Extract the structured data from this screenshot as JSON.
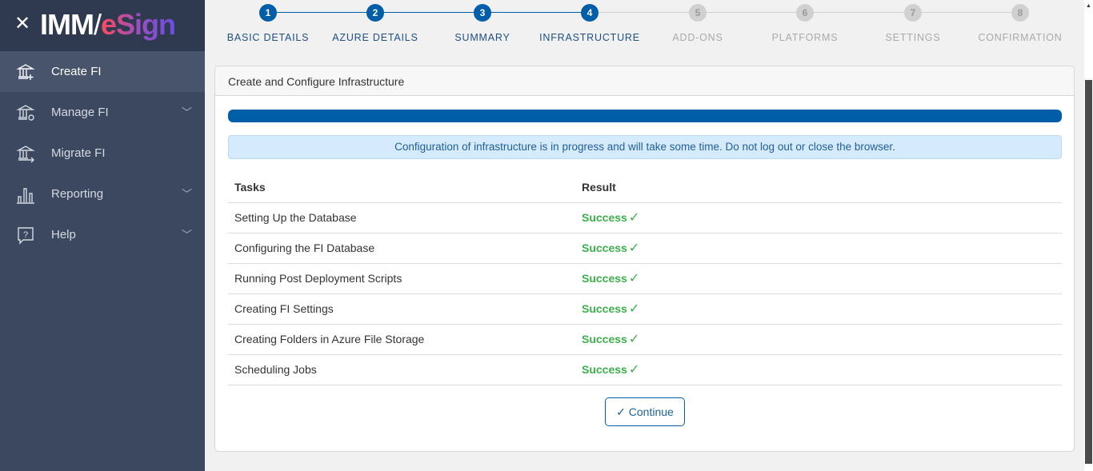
{
  "app": {
    "logo_text": "IMM/eSign",
    "close_icon": "close-icon"
  },
  "sidebar": {
    "items": [
      {
        "label": "Create FI",
        "icon": "bank-plus-icon",
        "active": true
      },
      {
        "label": "Manage FI",
        "icon": "bank-gear-icon",
        "expandable": true
      },
      {
        "label": "Migrate FI",
        "icon": "bank-arrow-icon"
      },
      {
        "label": "Reporting",
        "icon": "bar-chart-icon",
        "expandable": true
      },
      {
        "label": "Help",
        "icon": "help-bubble-icon",
        "expandable": true
      }
    ]
  },
  "stepper": {
    "steps": [
      {
        "num": "1",
        "label": "BASIC DETAILS",
        "done": true
      },
      {
        "num": "2",
        "label": "AZURE DETAILS",
        "done": true
      },
      {
        "num": "3",
        "label": "SUMMARY",
        "done": true
      },
      {
        "num": "4",
        "label": "INFRASTRUCTURE",
        "done": true
      },
      {
        "num": "5",
        "label": "ADD-ONS",
        "done": false
      },
      {
        "num": "6",
        "label": "PLATFORMS",
        "done": false
      },
      {
        "num": "7",
        "label": "SETTINGS",
        "done": false
      },
      {
        "num": "8",
        "label": "CONFIRMATION",
        "done": false
      }
    ]
  },
  "card": {
    "title": "Create and Configure Infrastructure",
    "progress_percent": 100,
    "alert": "Configuration of infrastructure is in progress and will take some time. Do not log out or close the browser.",
    "table": {
      "headers": [
        "Tasks",
        "Result"
      ],
      "rows": [
        {
          "task": "Setting Up the Database",
          "result": "Success"
        },
        {
          "task": "Configuring the FI Database",
          "result": "Success"
        },
        {
          "task": "Running Post Deployment Scripts",
          "result": "Success"
        },
        {
          "task": "Creating FI Settings",
          "result": "Success"
        },
        {
          "task": "Creating Folders in Azure File Storage",
          "result": "Success"
        },
        {
          "task": "Scheduling Jobs",
          "result": "Success"
        }
      ]
    },
    "continue_label": "Continue"
  },
  "colors": {
    "primary": "#005ea8",
    "success": "#3cb04a",
    "sidebar": "#3b4860",
    "inactive_step": "#d0d0d0"
  }
}
